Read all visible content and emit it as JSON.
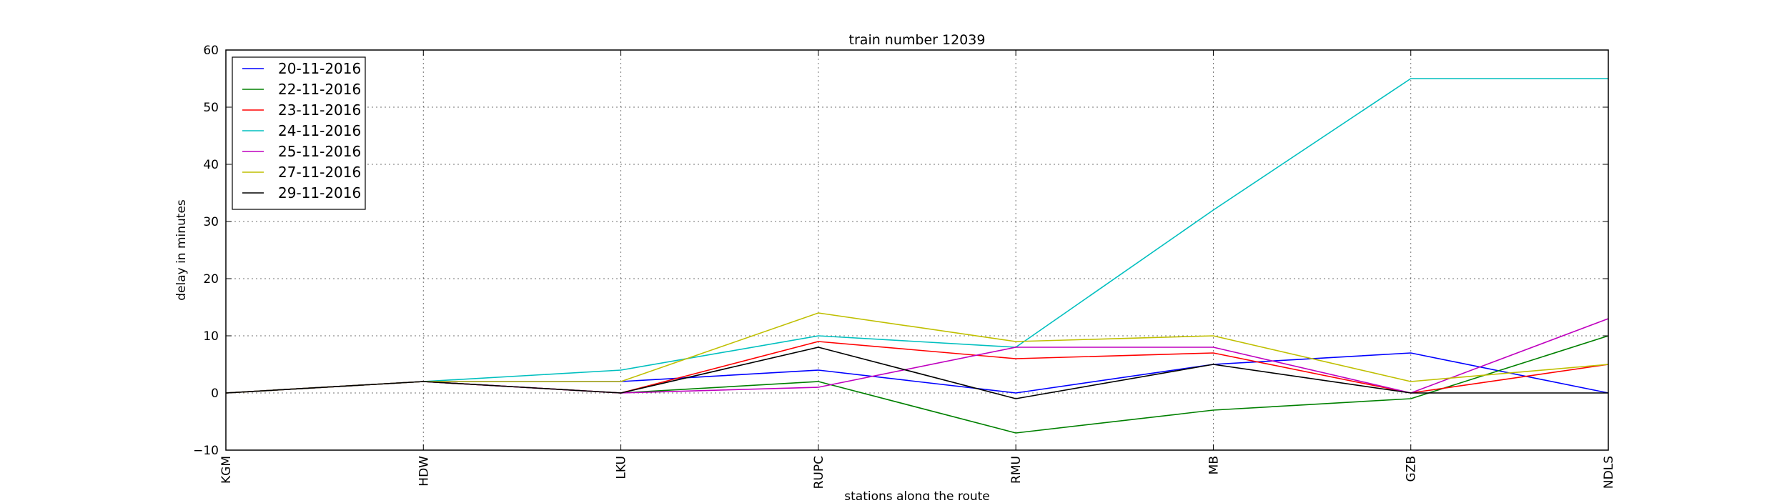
{
  "chart_data": {
    "type": "line",
    "title": "train number 12039",
    "xlabel": "stations along the route",
    "ylabel": "delay in minutes",
    "categories": [
      "KGM",
      "HDW",
      "LKU",
      "RUPC",
      "RMU",
      "MB",
      "GZB",
      "NDLS"
    ],
    "ylim": [
      -10,
      60
    ],
    "yticks": [
      -10,
      0,
      10,
      20,
      30,
      40,
      50,
      60
    ],
    "grid": true,
    "legend_position": "top-left",
    "series": [
      {
        "name": "20-11-2016",
        "color": "#0000ff",
        "values": [
          0,
          2,
          2,
          4,
          0,
          5,
          7,
          0
        ]
      },
      {
        "name": "22-11-2016",
        "color": "#008000",
        "values": [
          0,
          2,
          0,
          2,
          -7,
          -3,
          -1,
          10
        ]
      },
      {
        "name": "23-11-2016",
        "color": "#ff0000",
        "values": [
          0,
          2,
          0,
          9,
          6,
          7,
          0,
          5
        ]
      },
      {
        "name": "24-11-2016",
        "color": "#00bfbf",
        "values": [
          0,
          2,
          4,
          10,
          8,
          32,
          55,
          55
        ]
      },
      {
        "name": "25-11-2016",
        "color": "#bf00bf",
        "values": [
          0,
          2,
          0,
          1,
          8,
          8,
          0,
          13
        ]
      },
      {
        "name": "27-11-2016",
        "color": "#bfbf00",
        "values": [
          0,
          2,
          2,
          14,
          9,
          10,
          2,
          5
        ]
      },
      {
        "name": "29-11-2016",
        "color": "#000000",
        "values": [
          0,
          2,
          0,
          8,
          -1,
          5,
          0,
          0
        ]
      }
    ]
  }
}
